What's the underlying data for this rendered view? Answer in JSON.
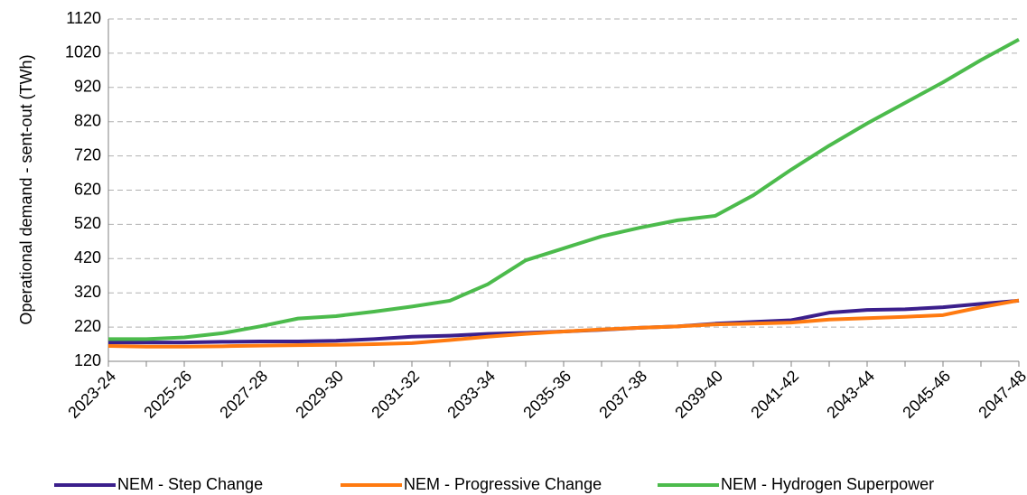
{
  "chart_data": {
    "type": "line",
    "y_label": "Operational demand - sent-out (TWh)",
    "categories": [
      "2023-24",
      null,
      "2025-26",
      null,
      "2027-28",
      null,
      "2029-30",
      null,
      "2031-32",
      null,
      "2033-34",
      null,
      "2035-36",
      null,
      "2037-38",
      null,
      "2039-40",
      null,
      "2041-42",
      null,
      "2043-44",
      null,
      "2045-46",
      null,
      "2047-48"
    ],
    "series": [
      {
        "name": "NEM - Step Change",
        "color": "#3b1f8c",
        "values": [
          175,
          175,
          175,
          177,
          178,
          178,
          180,
          185,
          192,
          195,
          200,
          203,
          207,
          212,
          218,
          222,
          230,
          235,
          240,
          262,
          270,
          272,
          278,
          288,
          297
        ]
      },
      {
        "name": "NEM - Progressive Change",
        "color": "#ff7a10",
        "values": [
          165,
          163,
          163,
          164,
          166,
          167,
          168,
          170,
          173,
          182,
          192,
          200,
          207,
          213,
          218,
          222,
          228,
          230,
          233,
          242,
          246,
          250,
          255,
          278,
          298
        ]
      },
      {
        "name": "NEM - Hydrogen Superpower",
        "color": "#4cbb4c",
        "values": [
          185,
          185,
          190,
          202,
          222,
          245,
          252,
          265,
          280,
          297,
          345,
          415,
          450,
          485,
          510,
          532,
          545,
          605,
          680,
          750,
          815,
          875,
          935,
          1000,
          1060
        ]
      }
    ],
    "ylim": [
      120,
      1120
    ],
    "yticks": [
      120,
      220,
      320,
      420,
      520,
      620,
      720,
      820,
      920,
      1020,
      1120
    ],
    "grid": true,
    "legend": "bottom"
  }
}
